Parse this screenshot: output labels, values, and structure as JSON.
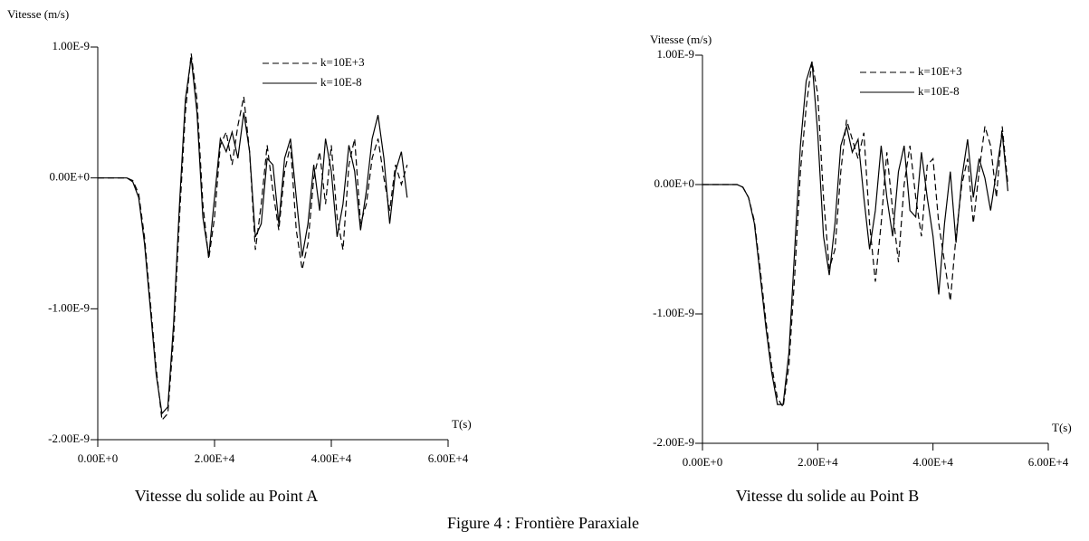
{
  "chart_data": [
    {
      "type": "line",
      "title": "Vitesse du solide au Point A",
      "y_label": "Vitesse (m/s)",
      "x_label": "T(s)",
      "xlim": [
        0,
        60000
      ],
      "ylim": [
        -2e-09,
        1e-09
      ],
      "xticks": [
        {
          "value": 0,
          "label": "0.00E+0"
        },
        {
          "value": 20000,
          "label": "2.00E+4"
        },
        {
          "value": 40000,
          "label": "4.00E+4"
        },
        {
          "value": 60000,
          "label": "6.00E+4"
        }
      ],
      "yticks": [
        {
          "value": -2e-09,
          "label": "-2.00E-9"
        },
        {
          "value": -1e-09,
          "label": "-1.00E-9"
        },
        {
          "value": 0,
          "label": "0.00E+0"
        },
        {
          "value": 1e-09,
          "label": "1.00E-9"
        }
      ],
      "legend": "upper right",
      "x": [
        0,
        1000,
        2000,
        3000,
        4000,
        5000,
        6000,
        7000,
        8000,
        9000,
        10000,
        11000,
        12000,
        13000,
        14000,
        15000,
        16000,
        17000,
        18000,
        19000,
        20000,
        21000,
        22000,
        23000,
        24000,
        25000,
        26000,
        27000,
        28000,
        29000,
        30000,
        31000,
        32000,
        33000,
        34000,
        35000,
        36000,
        37000,
        38000,
        39000,
        40000,
        41000,
        42000,
        43000,
        44000,
        45000,
        46000,
        47000,
        48000,
        49000,
        50000,
        51000,
        52000,
        53000
      ],
      "series": [
        {
          "name": "k=10E+3",
          "color": "#000000",
          "linestyle": "dashed",
          "values": [
            0,
            0,
            0,
            0,
            0,
            0,
            -2e-11,
            -1.2e-10,
            -4.5e-10,
            -9.5e-10,
            -1.45e-09,
            -1.85e-09,
            -1.8e-09,
            -1.2e-09,
            -3e-10,
            5e-10,
            9.5e-10,
            6e-10,
            -2e-10,
            -6.2e-10,
            -3e-10,
            2.5e-10,
            3.5e-10,
            1e-10,
            4e-10,
            6.2e-10,
            2e-10,
            -5.5e-10,
            -2e-10,
            2.5e-10,
            -1e-10,
            -4e-10,
            5e-11,
            2.5e-10,
            -4e-10,
            -7e-10,
            -5e-10,
            0,
            2e-10,
            -2e-10,
            2.5e-10,
            -3e-10,
            -5.5e-10,
            1e-10,
            3e-10,
            -3.5e-10,
            -2e-10,
            1.5e-10,
            3e-10,
            0,
            -2.5e-10,
            1e-10,
            -5e-11,
            1e-10
          ]
        },
        {
          "name": "k=10E-8",
          "color": "#000000",
          "linestyle": "solid",
          "values": [
            0,
            0,
            0,
            0,
            0,
            0,
            -3e-11,
            -1.5e-10,
            -5e-10,
            -1e-09,
            -1.5e-09,
            -1.8e-09,
            -1.75e-09,
            -1.1e-09,
            -2e-10,
            6e-10,
            9.2e-10,
            5e-10,
            -3e-10,
            -6e-10,
            -1.5e-10,
            3e-10,
            2e-10,
            3.5e-10,
            1.5e-10,
            5e-10,
            2e-10,
            -4.5e-10,
            -3.5e-10,
            1.5e-10,
            1e-10,
            -3.5e-10,
            1.5e-10,
            3e-10,
            -1.5e-10,
            -6e-10,
            -3.5e-10,
            1e-10,
            -2.5e-10,
            3e-10,
            5e-11,
            -4.5e-10,
            -2e-10,
            2.5e-10,
            5e-11,
            -4e-10,
            -1e-10,
            3e-10,
            4.8e-10,
            1.5e-10,
            -3.5e-10,
            5e-11,
            2e-10,
            -1.5e-10
          ]
        }
      ]
    },
    {
      "type": "line",
      "title": "Vitesse du solide au Point B",
      "y_label": "Vitesse (m/s)",
      "x_label": "T(s)",
      "xlim": [
        0,
        60000
      ],
      "ylim": [
        -2e-09,
        1e-09
      ],
      "xticks": [
        {
          "value": 0,
          "label": "0.00E+0"
        },
        {
          "value": 20000,
          "label": "2.00E+4"
        },
        {
          "value": 40000,
          "label": "4.00E+4"
        },
        {
          "value": 60000,
          "label": "6.00E+4"
        }
      ],
      "yticks": [
        {
          "value": -2e-09,
          "label": "-2.00E-9"
        },
        {
          "value": -1e-09,
          "label": "-1.00E-9"
        },
        {
          "value": 0,
          "label": "0.00E+0"
        },
        {
          "value": 1e-09,
          "label": "1.00E-9"
        }
      ],
      "legend": "upper right",
      "x": [
        0,
        1000,
        2000,
        3000,
        4000,
        5000,
        6000,
        7000,
        8000,
        9000,
        10000,
        11000,
        12000,
        13000,
        14000,
        15000,
        16000,
        17000,
        18000,
        19000,
        20000,
        21000,
        22000,
        23000,
        24000,
        25000,
        26000,
        27000,
        28000,
        29000,
        30000,
        31000,
        32000,
        33000,
        34000,
        35000,
        36000,
        37000,
        38000,
        39000,
        40000,
        41000,
        42000,
        43000,
        44000,
        45000,
        46000,
        47000,
        48000,
        49000,
        50000,
        51000,
        52000,
        53000
      ],
      "series": [
        {
          "name": "k=10E+3",
          "color": "#000000",
          "linestyle": "dashed",
          "values": [
            0,
            0,
            0,
            0,
            0,
            0,
            0,
            -2e-11,
            -1e-10,
            -2.8e-10,
            -6.5e-10,
            -1.05e-09,
            -1.4e-09,
            -1.65e-09,
            -1.72e-09,
            -1.4e-09,
            -7e-10,
            1e-10,
            6e-10,
            9.5e-10,
            7e-10,
            -1e-10,
            -6.5e-10,
            -5e-10,
            1e-10,
            5e-10,
            3.5e-10,
            2e-10,
            4e-10,
            -3e-10,
            -7.5e-10,
            -3e-10,
            2.5e-10,
            -2e-10,
            -6e-10,
            0,
            3e-10,
            -1e-10,
            -4e-10,
            1.5e-10,
            2e-10,
            -3e-10,
            -6e-10,
            -9e-10,
            -4e-10,
            0,
            2e-10,
            -3e-10,
            1e-10,
            4.5e-10,
            3e-10,
            -1e-10,
            4.5e-10,
            0
          ]
        },
        {
          "name": "k=10E-8",
          "color": "#000000",
          "linestyle": "solid",
          "values": [
            0,
            0,
            0,
            0,
            0,
            0,
            0,
            -2e-11,
            -1e-10,
            -3e-10,
            -7e-10,
            -1.1e-09,
            -1.45e-09,
            -1.7e-09,
            -1.7e-09,
            -1.3e-09,
            -5e-10,
            3e-10,
            8e-10,
            9.5e-10,
            4e-10,
            -4e-10,
            -7e-10,
            -3e-10,
            3e-10,
            4.5e-10,
            2.5e-10,
            3.5e-10,
            -1e-10,
            -5e-10,
            -2e-10,
            3e-10,
            -1e-10,
            -4e-10,
            1e-10,
            3e-10,
            -2e-10,
            -2.5e-10,
            2.5e-10,
            -1e-10,
            -4e-10,
            -8.5e-10,
            -3e-10,
            1e-10,
            -4.5e-10,
            5e-11,
            3.5e-10,
            -1e-10,
            2e-10,
            5e-11,
            -2e-10,
            1e-10,
            4e-10,
            -5e-11
          ]
        }
      ]
    }
  ],
  "figure_caption": "Figure 4 : Frontière Paraxiale"
}
